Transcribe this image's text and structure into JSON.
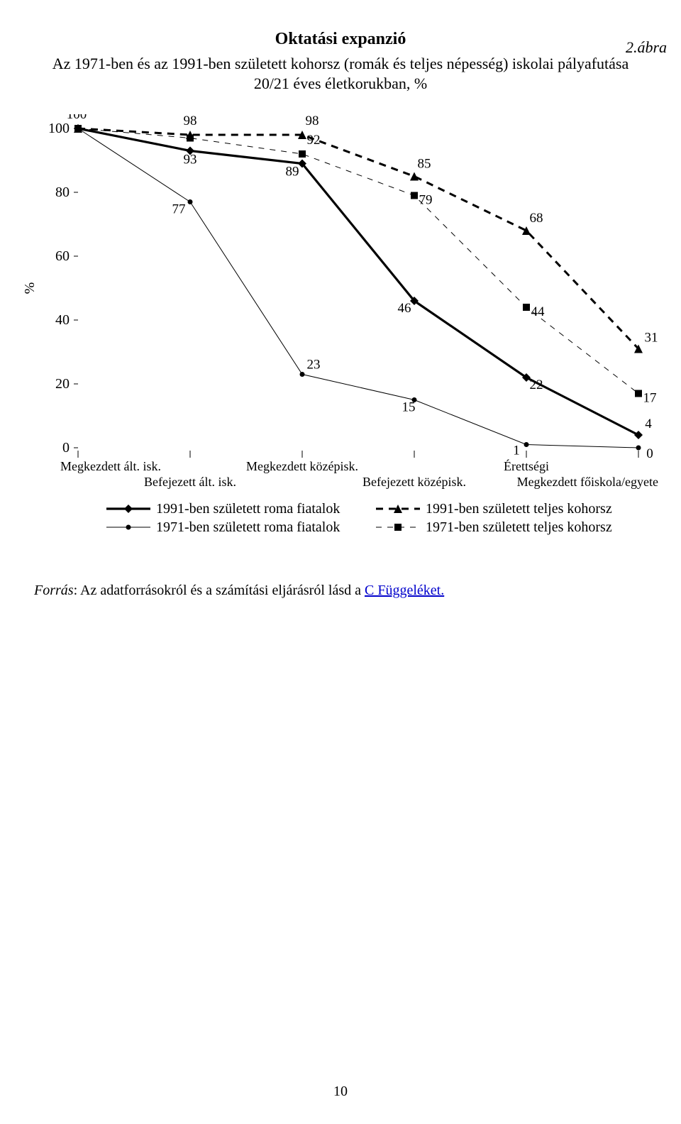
{
  "figure_label": "2.ábra",
  "title": "Oktatási expanzió",
  "subtitle1": "Az 1971-ben és az 1991-ben született kohorsz (romák és teljes népesség) iskolai pályafutása",
  "subtitle2": "20/21 éves életkorukban, %",
  "chart": {
    "type": "line",
    "background_color": "#ffffff",
    "axis_color": "#000000",
    "text_color": "#000000",
    "ylabel": "%",
    "ylim": [
      0,
      100
    ],
    "yticks": [
      0,
      20,
      40,
      60,
      80,
      100
    ],
    "categories": [
      "Megkezdett ált. isk.",
      "Befejezett ált. isk.",
      "Megkezdett középisk.",
      "Befejezett középisk.",
      "Érettségi",
      "Megkezdett főiskola/egyete"
    ],
    "category_label_row": [
      0,
      1,
      0,
      1,
      0,
      1
    ],
    "category_label_fontsize": 18,
    "axis_fontsize": 20,
    "value_label_fontsize": 19,
    "legend_fontsize": 20,
    "series": [
      {
        "id": "roma_1991",
        "label": "1991-ben született roma fiatalok",
        "values": [
          100,
          93,
          89,
          46,
          22,
          4
        ],
        "label_offsets": [
          [
            -2,
            -14
          ],
          [
            0,
            18
          ],
          [
            -14,
            17
          ],
          [
            -14,
            16
          ],
          [
            14,
            16
          ],
          [
            14,
            -10
          ]
        ],
        "color": "#000000",
        "line_width": 3.2,
        "dash": "none",
        "marker": "diamond",
        "marker_size": 6
      },
      {
        "id": "total_1991",
        "label": "1991-ben született teljes kohorsz",
        "values": [
          100,
          98,
          98,
          85,
          68,
          31
        ],
        "label_offsets": [
          [
            0,
            0
          ],
          [
            0,
            -14
          ],
          [
            14,
            -14
          ],
          [
            14,
            -12
          ],
          [
            14,
            -12
          ],
          [
            18,
            -10
          ]
        ],
        "color": "#000000",
        "line_width": 3.0,
        "dash": "10,8",
        "marker": "triangle",
        "marker_size": 6
      },
      {
        "id": "roma_1971",
        "label": "1971-ben született roma fiatalok",
        "values": [
          100,
          77,
          23,
          15,
          1,
          0
        ],
        "label_offsets": [
          [
            0,
            0
          ],
          [
            -16,
            16
          ],
          [
            16,
            -8
          ],
          [
            -8,
            16
          ],
          [
            -14,
            14
          ],
          [
            16,
            14
          ]
        ],
        "color": "#000000",
        "line_width": 1.0,
        "dash": "none",
        "marker": "circle",
        "marker_size": 3.5
      },
      {
        "id": "total_1971",
        "label": "1971-ben született teljes kohorsz",
        "values": [
          100,
          97,
          92,
          79,
          44,
          17
        ],
        "label_offsets": [
          [
            0,
            0
          ],
          [
            0,
            0
          ],
          [
            16,
            -14
          ],
          [
            16,
            12
          ],
          [
            16,
            12
          ],
          [
            16,
            12
          ]
        ],
        "color": "#000000",
        "line_width": 1.0,
        "dash": "8,8",
        "marker": "square",
        "marker_size": 5
      }
    ],
    "legend_layout": [
      [
        "roma_1991",
        "total_1991"
      ],
      [
        "roma_1971",
        "total_1971"
      ]
    ]
  },
  "source_prefix": "Forrás",
  "source_text": ": Az adatforrásokról és a számítási eljárásról lásd a ",
  "source_link": "C Függeléket.",
  "page_number": "10"
}
